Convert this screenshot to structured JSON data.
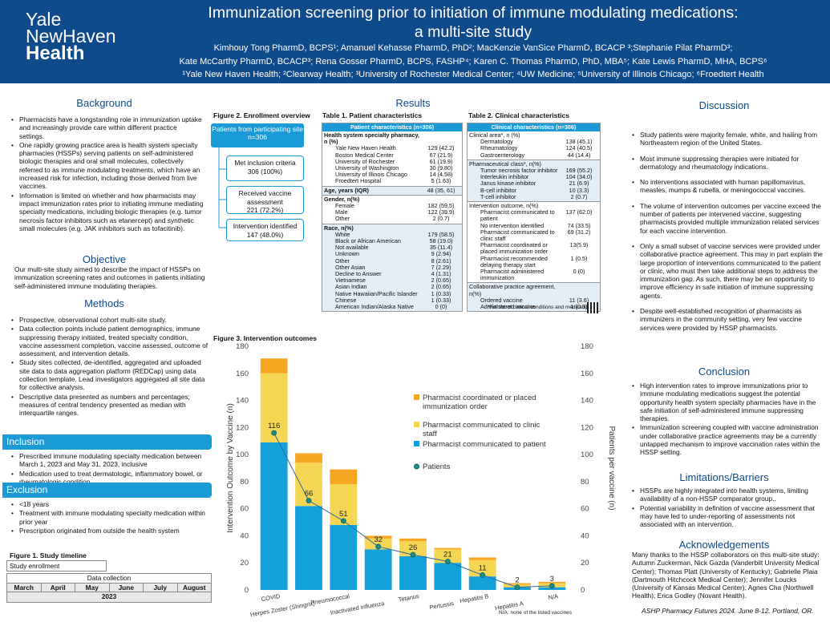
{
  "header": {
    "logo": [
      "Yale",
      "NewHaven",
      "Health"
    ],
    "title_line1": "Immunization screening prior to initiation of immune modulating medications:",
    "title_line2": "a multi-site study",
    "authors_line1": "Kimhouy Tong PharmD, BCPS¹; Amanuel Kehasse PharmD, PhD²; MacKenzie VanSice PharmD, BCACP ³;Stephanie Pilat PharmD³;",
    "authors_line2": "Kate McCarthy PharmD, BCACP³; Rena Gosser PharmD, BCPS, FASHP⁴; Karen C. Thomas PharmD, PhD, MBA⁵; Kate Lewis PharmD, MHA, BCPS⁶",
    "authors_line3": "¹Yale New Haven Health; ²Clearway Health; ³University of Rochester Medical Center; ⁴UW Medicine; ⁵University of Illinois Chicago; ⁶Froedtert Health"
  },
  "background": {
    "title": "Background",
    "bullets": [
      "Pharmacists have a longstanding role in immunization uptake and increasingly provide care within different practice settings.",
      "One rapidly growing practice area is health system specialty pharmacies (HSSPs) serving patients on self-administered biologic therapies and oral small molecules, collectively referred to as immune modulating treatments, which have an increased risk for infection, including those derived from live vaccines.",
      "Information is limited on whether and how pharmacists may impact immunization rates prior to initiating immune mediating specialty medications, including biologic therapies (e.g. tumor necrosis factor inhibitors such as etanercept) and synthetic small molecules (e.g. JAK inhibitors such as tofacitinib)."
    ]
  },
  "objective": {
    "title": "Objective",
    "text": "Our multi-site study aimed to describe the impact of HSSPs on immunization screening rates and outcomes in patients initiating self-administered immune modulating therapies."
  },
  "methods": {
    "title": "Methods",
    "bullets": [
      "Prospective, observational cohort multi-site study.",
      "Data collection points include patient demographics, immune suppressing therapy initiated, treated specialty condition, vaccine assessment completion, vaccine assessed, outcome of assessment, and intervention details.",
      "Study sites collected, de-identified, aggregated and uploaded site data to data aggregation platform (REDCap) using data collection template. Lead investigators aggregated all site data for collective analysis.",
      "Descriptive data presented as numbers and percentages; measures of central tendency presented as median with interquartile ranges."
    ]
  },
  "inclusion": {
    "title": "Inclusion",
    "bullets": [
      "Prescribed immune modulating specialty medication between March 1, 2023 and May 31, 2023, inclusive",
      "Medication used to treat dermatologic, inflammatory bowel, or rheumatologic condition"
    ]
  },
  "exclusion": {
    "title": "Exclusion",
    "bullets": [
      "<18 years",
      "Treatment with immune modulating specialty medication within prior year",
      "Prescription originated from outside the health system"
    ]
  },
  "timeline": {
    "label": "Figure 1. Study timeline",
    "enrollment": "Study enrollment",
    "data_collection": "Data collection",
    "months": [
      "March",
      "April",
      "May",
      "June",
      "July",
      "August"
    ],
    "year": "2023"
  },
  "results": {
    "title": "Results",
    "fig2_label": "Figure 2. Enrollment overview",
    "enroll_top_label": "Patients from participating site",
    "enroll_top_n": "n=306",
    "enroll_boxes": [
      {
        "label": "Met inclusion criteria",
        "value": "306 (100%)"
      },
      {
        "label": "Received vaccine assessment",
        "value": "221 (72.2%)"
      },
      {
        "label": "Intervention identified",
        "value": "147 (48.0%)"
      }
    ],
    "table1_label": "Table 1. Patient characteristics",
    "table2_label": "Table 2. Clinical characteristics"
  },
  "table1": {
    "header": "Patient characteristics (n=306)",
    "groups": [
      {
        "shade": false,
        "rows": [
          {
            "label": "Health system specialty pharmacy, n (%)",
            "value": "",
            "b": true
          },
          {
            "label": "Yale New Haven Health",
            "value": "129 (42.2)",
            "ind": true
          },
          {
            "label": "Boston Medical Center",
            "value": "67 (21.9)",
            "ind": true
          },
          {
            "label": "University of Rochester",
            "value": "61 (19.9)",
            "ind": true
          },
          {
            "label": "University of Washington",
            "value": "30 (9.80)",
            "ind": true
          },
          {
            "label": "University of Illinois Chicago",
            "value": "14 (4.58)",
            "ind": true
          },
          {
            "label": "Froedtert Hospital",
            "value": "5 (1.63)",
            "ind": true
          }
        ]
      },
      {
        "shade": true,
        "rows": [
          {
            "label": "Age, years (IQR)",
            "value": "48 (35, 61)",
            "b": true
          }
        ]
      },
      {
        "shade": false,
        "rows": [
          {
            "label": "Gender, n(%)",
            "value": "",
            "b": true
          },
          {
            "label": "Female",
            "value": "182 (59.5)",
            "ind": true
          },
          {
            "label": "Male",
            "value": "122 (39.9)",
            "ind": true
          },
          {
            "label": "Other",
            "value": "2 (0.7)",
            "ind": true
          }
        ]
      },
      {
        "shade": true,
        "rows": [
          {
            "label": "Race, n(%)",
            "value": "",
            "b": true
          },
          {
            "label": "White",
            "value": "179 (58.5)",
            "ind": true
          },
          {
            "label": "Black or African American",
            "value": "58 (19.0)",
            "ind": true
          },
          {
            "label": "Not available",
            "value": "35 (11.4)",
            "ind": true
          },
          {
            "label": "Unknown",
            "value": "9 (2.94)",
            "ind": true
          },
          {
            "label": "Other",
            "value": "8 (2.61)",
            "ind": true
          },
          {
            "label": "Other Asian",
            "value": "7 (2.29)",
            "ind": true
          },
          {
            "label": "Decline to Answer",
            "value": "4 (1.31)",
            "ind": true
          },
          {
            "label": "Vietnamese",
            "value": "2 (0.65)",
            "ind": true
          },
          {
            "label": "Asian Indian",
            "value": "2 (0.65)",
            "ind": true
          },
          {
            "label": "Native Hawaiian/Pacific Islander",
            "value": "1 (0.33)",
            "ind": true
          },
          {
            "label": "Chinese",
            "value": "1 (0.33)",
            "ind": true
          },
          {
            "label": "American Indian/Alaska Native",
            "value": "0 (0)",
            "ind": true
          }
        ]
      }
    ]
  },
  "table2": {
    "header": "Clinical characteristics (n=306)",
    "groups": [
      {
        "shade": false,
        "rows": [
          {
            "label": "Clinical area*, n (%)",
            "value": ""
          },
          {
            "label": "Dermatology",
            "value": "138 (45.1)",
            "ind": true
          },
          {
            "label": "Rheumatology",
            "value": "124 (40.5)",
            "ind": true
          },
          {
            "label": "Gastroenterology",
            "value": "44 (14.4)",
            "ind": true
          }
        ]
      },
      {
        "shade": true,
        "rows": [
          {
            "label": "Pharmaceutical class*, n(%)",
            "value": ""
          },
          {
            "label": "Tumor necrosis factor inhibitor",
            "value": "169 (55.2)",
            "ind": true
          },
          {
            "label": "Interleukin inhibitor",
            "value": "104 (34.0)",
            "ind": true
          },
          {
            "label": "Janus kinase inhibitor",
            "value": "21 (6.9)",
            "ind": true
          },
          {
            "label": "B-cell inhibitor",
            "value": "10 (3.3)",
            "ind": true
          },
          {
            "label": "T-cell inhibitor",
            "value": "2 (0.7)",
            "ind": true
          }
        ]
      },
      {
        "shade": false,
        "rows": [
          {
            "label": "Intervention outcome, n(%)",
            "value": ""
          },
          {
            "label": "Pharmacist communicated to patient",
            "value": "137 (62.0)",
            "ind": true
          },
          {
            "label": "No intervention identified",
            "value": "74 (33.5)",
            "ind": true
          },
          {
            "label": "Pharmacist communicated to clinic staff",
            "value": "69 (31.2)",
            "ind": true
          },
          {
            "label": "Pharmacist coordinated or placed immunization order",
            "value": "13(5.9)",
            "ind": true
          },
          {
            "label": "Pharmacist recommended delaying therapy start",
            "value": "1 (0.5)",
            "ind": true
          },
          {
            "label": "Pharmacist administered immunization",
            "value": "0 (0)",
            "ind": true
          }
        ]
      },
      {
        "shade": true,
        "rows": [
          {
            "label": "Collaborative practice agreement, n(%)",
            "value": ""
          },
          {
            "label": "Ordered vaccine",
            "value": "11 (3.6)",
            "ind": true
          },
          {
            "label": "Administered vaccine",
            "value": "1 (0.3)",
            "ind": true
          }
        ]
      }
    ],
    "footnote": "*Full list of clinical conditions and medications:"
  },
  "chart_data": {
    "type": "bar",
    "title": "Figure 3. Intervention outcomes",
    "ylabel": "Intervention Outcome by Vaccine  (n)",
    "y2label": "Patients per vaccine (n)",
    "ylim": [
      0,
      180
    ],
    "y2lim": [
      0,
      180
    ],
    "yticks": [
      0,
      20,
      40,
      60,
      80,
      100,
      120,
      140,
      160,
      180
    ],
    "categories": [
      "COVID",
      "Herpes Zoster (Shingrix)",
      "Pneumococcal",
      "Inactivated influenza",
      "Tetanus",
      "Pertussis",
      "Hepatitis B",
      "Hepatitis A",
      "N/A"
    ],
    "series": [
      {
        "name": "Pharmacist communicated to patient",
        "color": "#14a0d8",
        "values": [
          109,
          62,
          48,
          30,
          25,
          20,
          10,
          2,
          2
        ]
      },
      {
        "name": "Pharmacist communicated to clinic staff",
        "color": "#f5d654",
        "values": [
          51,
          32,
          30,
          8,
          11,
          10,
          12,
          2,
          3
        ]
      },
      {
        "name": "Pharmacist coordinated or placed immunization order",
        "color": "#f5a623",
        "values": [
          11,
          7,
          11,
          2,
          2,
          1,
          2,
          1,
          1
        ]
      }
    ],
    "line": {
      "name": "Patients",
      "color": "#1a8f8a",
      "values": [
        116,
        66,
        51,
        32,
        26,
        21,
        11,
        2,
        3
      ]
    },
    "legend_position": "right",
    "footnote": "N/A: none of the listed vaccines"
  },
  "discussion": {
    "title": "Discussion",
    "bullets": [
      "Study patients were majority female, white, and hailing from Northeastern region of the United States.",
      "Most immune suppressing therapies were initiated for dermatology and rheumatology indications.",
      "No interventions associated with human papillomavirus, measles, mumps & rubella, or meningococcal vaccines.",
      "The volume of intervention outcomes per vaccine exceed the number of patients per intervened vaccine, suggesting pharmacists provided multiple immunization related services for each vaccine intervention.",
      "Only a small subset of vaccine services were provided under collaborative practice agreement. This may in part explain the large proportion of interventions communicated to the patient or clinic, who must then take additional steps to address the immunization gap. As such, there may be an opportunity to improve efficiency in safe initiation of immune suppressing agents.",
      "Despite well-established recognition of pharmacists as immunizers in the community setting, very few vaccine services were provided by HSSP pharmacists."
    ]
  },
  "conclusion": {
    "title": "Conclusion",
    "bullets": [
      "High intervention rates to improve immunizations prior to immune modulating medications suggest the potential opportunity health system specialty pharmacies have in the safe initiation of self-administered immune suppressing therapies.",
      "Immunization screening coupled with vaccine administration under collaborative practice agreements may be a currently untapped mechanism to improve vaccination rates within the HSSP setting."
    ]
  },
  "limitations": {
    "title": "Limitations/Barriers",
    "bullets": [
      "HSSPs are highly integrated into health systems, limiting availability of a non-HSSP comparator group..",
      "Potential variability in definition of vaccine assessment that may have led to under-reporting of assessments not associated with an intervention."
    ]
  },
  "acknowledgements": {
    "title": "Acknowledgements",
    "text": "Many thanks to the HSSP collaborators on this multi-site study: Autumn Zuckerman, Nick Gazda (Vanderbilt University Medical Center); Thomas Platt (University of Kentucky); Gabrielle Plaia (Dartmouth Hitchcock Medical Center); Jennifer Loucks (University of Kansas Medical Center); Agnes Cha (Northwell Health); Erica Godley (Novant Health)."
  },
  "citation": "ASHP Pharmacy Futures 2024. June 8-12. Portland, OR."
}
